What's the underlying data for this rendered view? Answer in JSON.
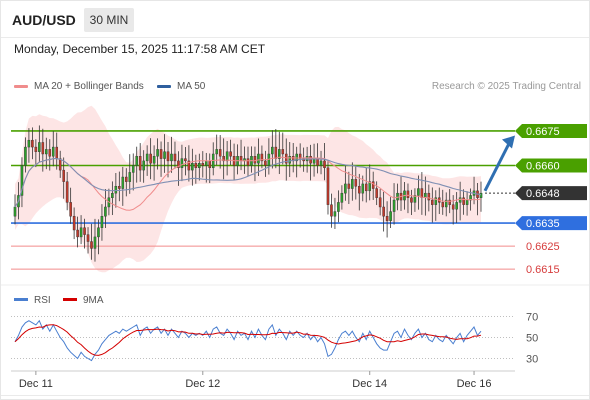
{
  "header": {
    "symbol": "AUD/USD",
    "timeframe": "30 MIN"
  },
  "datetime": "Monday, December 15, 2025 11:17:58 AM CET",
  "legend": [
    {
      "label": "MA 20 + Bollinger Bands",
      "color": "#f08c8c"
    },
    {
      "label": "MA 50",
      "color": "#2f5f9e"
    }
  ],
  "copyright": "Research © 2025 Trading Central",
  "colors": {
    "up": "#2ca02c",
    "down": "#c0392b",
    "resistance": "#4aa000",
    "support_blue": "#2f6fdf",
    "support_red": "#f28b8b",
    "arrow": "#2f6fb2",
    "bollinger_fill": "#fde2e2"
  },
  "chart_data": [
    {
      "type": "candlestick",
      "price_range": [
        0.6609,
        0.6688
      ],
      "x_labels": [
        {
          "label": "Dec 11",
          "index": 6
        },
        {
          "label": "Dec 12",
          "index": 54
        },
        {
          "label": "Dec 14",
          "index": 102
        },
        {
          "label": "Dec 16",
          "index": 132
        }
      ],
      "levels": [
        {
          "value": 0.6675,
          "label": "0.6675",
          "type": "resistance"
        },
        {
          "value": 0.666,
          "label": "0.6660",
          "type": "resistance"
        },
        {
          "value": 0.6635,
          "label": "0.6635",
          "type": "support"
        },
        {
          "value": 0.6625,
          "label": "0.6625",
          "type": "support-minor"
        },
        {
          "value": 0.6615,
          "label": "0.6615",
          "type": "support-minor"
        }
      ],
      "current_price": {
        "value": 0.6648,
        "label": "0.6648"
      },
      "closes": [
        0.6642,
        0.6647,
        0.666,
        0.6668,
        0.6671,
        0.6668,
        0.6666,
        0.667,
        0.6665,
        0.6667,
        0.6664,
        0.6668,
        0.6663,
        0.6658,
        0.6653,
        0.6644,
        0.6638,
        0.6632,
        0.6629,
        0.6633,
        0.663,
        0.6627,
        0.6624,
        0.6629,
        0.6633,
        0.6638,
        0.6642,
        0.6646,
        0.6648,
        0.6651,
        0.665,
        0.6655,
        0.6653,
        0.6657,
        0.666,
        0.6664,
        0.6658,
        0.6662,
        0.6665,
        0.6661,
        0.6664,
        0.6667,
        0.6663,
        0.6666,
        0.6662,
        0.6665,
        0.6662,
        0.6659,
        0.6663,
        0.6662,
        0.6658,
        0.6661,
        0.6659,
        0.6661,
        0.666,
        0.6662,
        0.6659,
        0.6665,
        0.6667,
        0.6664,
        0.6662,
        0.6666,
        0.6664,
        0.666,
        0.6664,
        0.6662,
        0.6663,
        0.666,
        0.6664,
        0.6661,
        0.6665,
        0.6662,
        0.666,
        0.6665,
        0.6668,
        0.6663,
        0.6667,
        0.6665,
        0.6661,
        0.6664,
        0.6662,
        0.6665,
        0.6663,
        0.6662,
        0.6664,
        0.6661,
        0.6663,
        0.666,
        0.6662,
        0.6659,
        0.6643,
        0.6638,
        0.664,
        0.6644,
        0.6648,
        0.6652,
        0.665,
        0.6654,
        0.6651,
        0.6648,
        0.6652,
        0.6649,
        0.6653,
        0.665,
        0.6646,
        0.6642,
        0.6638,
        0.6636,
        0.664,
        0.6645,
        0.6648,
        0.6645,
        0.6649,
        0.6646,
        0.6644,
        0.6647,
        0.665,
        0.6646,
        0.6648,
        0.6645,
        0.6643,
        0.6646,
        0.6644,
        0.6642,
        0.6645,
        0.6643,
        0.6641,
        0.6644,
        0.6646,
        0.6643,
        0.6645,
        0.6647,
        0.6649,
        0.6646,
        0.6648
      ],
      "arrow": {
        "from_value": 0.6649,
        "to_value": 0.6673
      }
    },
    {
      "type": "line",
      "title": "RSI",
      "series": [
        {
          "name": "RSI",
          "color": "#4a7fd0"
        },
        {
          "name": "9MA",
          "color": "#d40000"
        }
      ],
      "y_ticks": [
        70,
        50,
        30
      ],
      "ylim": [
        20,
        80
      ],
      "rsi_values": [
        46,
        52,
        60,
        64,
        66,
        64,
        62,
        66,
        58,
        62,
        56,
        62,
        56,
        50,
        46,
        40,
        36,
        33,
        30,
        36,
        32,
        30,
        28,
        34,
        38,
        44,
        48,
        52,
        54,
        56,
        54,
        58,
        56,
        58,
        60,
        62,
        52,
        58,
        60,
        54,
        58,
        60,
        54,
        58,
        52,
        58,
        54,
        50,
        56,
        54,
        50,
        54,
        52,
        54,
        52,
        56,
        50,
        58,
        60,
        54,
        52,
        58,
        54,
        48,
        56,
        52,
        54,
        48,
        56,
        50,
        58,
        52,
        48,
        58,
        62,
        52,
        58,
        54,
        48,
        56,
        52,
        56,
        52,
        50,
        54,
        48,
        52,
        46,
        50,
        44,
        32,
        34,
        40,
        48,
        54,
        56,
        52,
        56,
        50,
        46,
        54,
        48,
        56,
        50,
        44,
        40,
        38,
        38,
        46,
        54,
        56,
        50,
        58,
        52,
        48,
        54,
        58,
        50,
        54,
        48,
        46,
        52,
        48,
        46,
        52,
        48,
        44,
        50,
        54,
        46,
        52,
        56,
        60,
        52,
        56
      ]
    }
  ]
}
